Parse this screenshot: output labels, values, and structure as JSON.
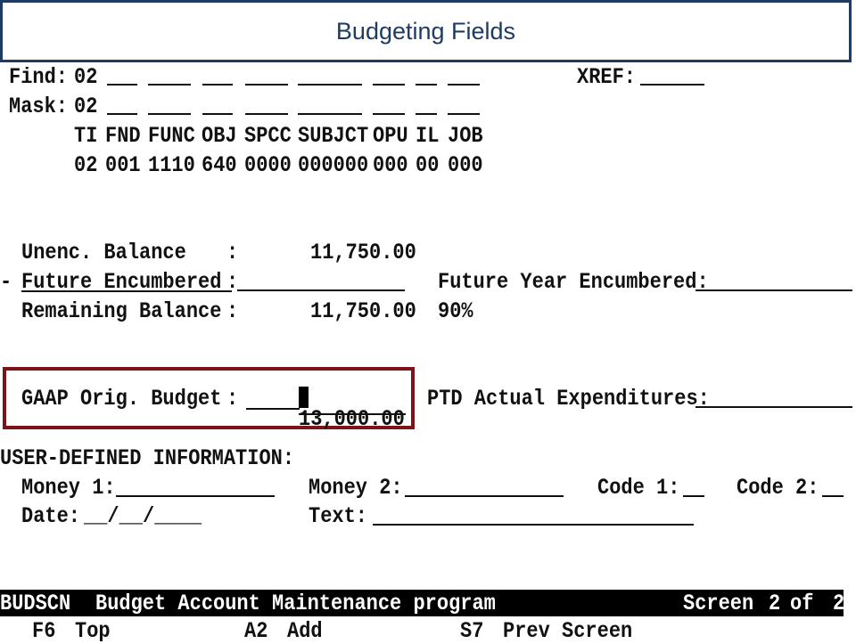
{
  "slide_title": "Budgeting Fields",
  "find": {
    "label": "Find:",
    "value": "02"
  },
  "mask": {
    "label": "Mask:",
    "value": "02"
  },
  "xref": {
    "label": "XREF:"
  },
  "account": {
    "headers": [
      "TI",
      "FND",
      "FUNC",
      "OBJ",
      "SPCC",
      "SUBJCT",
      "OPU",
      "IL",
      "JOB"
    ],
    "values": [
      "02",
      "001",
      "1110",
      "640",
      "0000",
      "000000",
      "000",
      "00",
      "000"
    ]
  },
  "balances": {
    "unenc_label": "Unenc. Balance",
    "unenc_value": "11,750.00",
    "future_prefix": "-",
    "future_label": "Future Encumbered",
    "future_year_label": "Future Year Encumbered:",
    "remaining_label": "Remaining Balance",
    "remaining_value": "11,750.00",
    "remaining_pct": "90%",
    "colon": ":"
  },
  "budget": {
    "gaap_label": "GAAP Orig. Budget",
    "gaap_value": "13,000.00",
    "ptd_label": "PTD Actual Expenditures:"
  },
  "user_defined": {
    "heading": "USER-DEFINED INFORMATION:",
    "money1": "Money 1:",
    "money2": "Money 2:",
    "code1": "Code 1:",
    "code2": "Code 2:",
    "date_label": "Date:",
    "date_mask": "__/__/____",
    "text_label": "Text:"
  },
  "status": {
    "program_id": "BUDSCN",
    "program_name": "Budget Account Maintenance program",
    "screen_label": "Screen",
    "screen_num": "2",
    "of_label": "of",
    "screen_total": "2"
  },
  "function_keys": [
    {
      "key": "F6",
      "label": "Top"
    },
    {
      "key": "A2",
      "label": "Add"
    },
    {
      "key": "S7",
      "label": "Prev Screen"
    }
  ],
  "colors": {
    "title_border": "#1f3b62",
    "highlight_border": "#7a1416"
  }
}
